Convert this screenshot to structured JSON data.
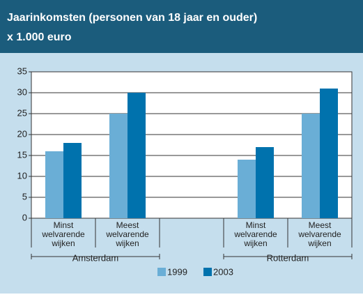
{
  "chart_data": {
    "type": "bar",
    "title": "Jaarinkomsten (personen van 18 jaar en ouder)",
    "subtitle": "x 1.000 euro",
    "categories": [
      "Minst welvarende wijken",
      "Meest welvarende wijken",
      null,
      "Minst welvarende wijken",
      "Meest welvarende wijken"
    ],
    "groups": [
      {
        "label": "Amsterdam",
        "span": [
          0,
          1
        ]
      },
      {
        "label": "Rotterdam",
        "span": [
          3,
          4
        ]
      }
    ],
    "series": [
      {
        "name": "1999",
        "color": "#6aaed6",
        "values": [
          16,
          25,
          null,
          14,
          25
        ]
      },
      {
        "name": "2003",
        "color": "#0072ad",
        "values": [
          18,
          30,
          null,
          17,
          31
        ]
      }
    ],
    "ylim": [
      0,
      35
    ],
    "yticks": [
      0,
      5,
      10,
      15,
      20,
      25,
      30,
      35
    ],
    "grid": true
  }
}
